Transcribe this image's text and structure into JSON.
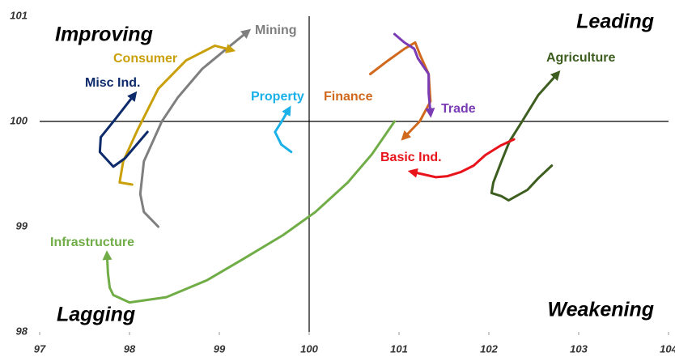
{
  "chart_data": {
    "type": "line",
    "annotations": [
      "Improving",
      "Leading",
      "Lagging",
      "Weakening"
    ],
    "xlim": [
      97,
      104
    ],
    "xticks": [
      97,
      98,
      99,
      100,
      101,
      102,
      103,
      104
    ],
    "ylim": [
      98,
      101
    ],
    "yticks": [
      98,
      99,
      100,
      101
    ],
    "series": [
      {
        "name": "Mining",
        "color": "#7f7f7f",
        "x": [
          98.32,
          98.16,
          98.12,
          98.16,
          98.36,
          98.54,
          98.81,
          99.08,
          99.31
        ],
        "values": [
          99.0,
          99.14,
          99.31,
          99.62,
          100.0,
          100.23,
          100.5,
          100.69,
          100.85
        ]
      },
      {
        "name": "Consumer",
        "color": "#c9a00a",
        "x": [
          98.03,
          97.89,
          97.93,
          98.09,
          98.32,
          98.63,
          98.95,
          99.13
        ],
        "values": [
          99.4,
          99.42,
          99.62,
          99.92,
          100.31,
          100.58,
          100.72,
          100.68
        ]
      },
      {
        "name": "Misc Ind.",
        "color": "#0d2a6b",
        "x": [
          98.2,
          97.95,
          97.82,
          97.67,
          97.68,
          97.84,
          98.05
        ],
        "values": [
          99.9,
          99.65,
          99.57,
          99.71,
          99.85,
          100.02,
          100.25
        ]
      },
      {
        "name": "Property",
        "color": "#1ab0e8",
        "x": [
          99.8,
          99.69,
          99.62,
          99.68,
          99.77
        ],
        "values": [
          99.71,
          99.78,
          99.9,
          99.98,
          100.11
        ]
      },
      {
        "name": "Finance",
        "color": "#d0691e",
        "x": [
          100.68,
          100.88,
          101.06,
          101.18,
          101.24,
          101.33,
          101.35,
          101.23,
          101.06
        ],
        "values": [
          100.45,
          100.58,
          100.69,
          100.75,
          100.62,
          100.45,
          100.19,
          100.0,
          99.85
        ]
      },
      {
        "name": "Trade",
        "color": "#7a3bb5",
        "x": [
          100.95,
          101.06,
          101.17,
          101.21,
          101.33,
          101.33,
          101.35
        ],
        "values": [
          100.83,
          100.75,
          100.69,
          100.6,
          100.45,
          100.27,
          100.08
        ]
      },
      {
        "name": "Agriculture",
        "color": "#3d5e1f",
        "x": [
          102.7,
          102.55,
          102.43,
          102.22,
          102.14,
          102.03,
          102.05,
          102.14,
          102.23,
          102.37,
          102.55,
          102.76
        ],
        "values": [
          99.58,
          99.46,
          99.35,
          99.25,
          99.29,
          99.32,
          99.42,
          99.62,
          99.81,
          100.0,
          100.25,
          100.45
        ]
      },
      {
        "name": "Basic Ind.",
        "color": "#e8141c",
        "x": [
          102.28,
          102.13,
          101.96,
          101.83,
          101.69,
          101.54,
          101.41,
          101.15
        ],
        "values": [
          99.83,
          99.77,
          99.68,
          99.58,
          99.52,
          99.48,
          99.47,
          99.52
        ]
      },
      {
        "name": "Infrastructure",
        "color": "#70ad47",
        "x": [
          100.95,
          100.7,
          100.43,
          100.07,
          99.71,
          99.26,
          98.86,
          98.41,
          98.0,
          97.82,
          97.78,
          97.76,
          97.75
        ],
        "values": [
          100.0,
          99.69,
          99.42,
          99.14,
          98.92,
          98.69,
          98.49,
          98.33,
          98.28,
          98.35,
          98.42,
          98.56,
          98.73
        ]
      }
    ]
  }
}
